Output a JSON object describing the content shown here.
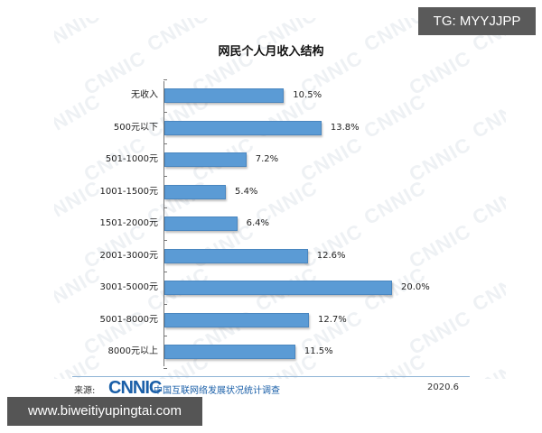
{
  "overlays": {
    "top_right_badge": "TG: MYYJJPP",
    "bottom_left_badge": "www.biweitiyupingtai.com"
  },
  "watermark": "CNNIC",
  "footer": {
    "source_label": "来源:",
    "logo": "CNNIC",
    "organization": "中国互联网络发展状况统计调查",
    "date": "2020.6"
  },
  "chart_data": {
    "type": "bar",
    "orientation": "horizontal",
    "title": "网民个人月收入结构",
    "xlabel": "",
    "ylabel": "",
    "unit": "%",
    "xlim": [
      0,
      20
    ],
    "grid": false,
    "legend": null,
    "color": "#5b9bd5",
    "categories": [
      "无收入",
      "500元以下",
      "501-1000元",
      "1001-1500元",
      "1501-2000元",
      "2001-3000元",
      "3001-5000元",
      "5001-8000元",
      "8000元以上"
    ],
    "values": [
      10.5,
      13.8,
      7.2,
      5.4,
      6.4,
      12.6,
      20.0,
      12.7,
      11.5
    ],
    "value_labels": [
      "10.5%",
      "13.8%",
      "7.2%",
      "5.4%",
      "6.4%",
      "12.6%",
      "20.0%",
      "12.7%",
      "11.5%"
    ],
    "source": "CNNIC 中国互联网络发展状况统计调查",
    "date": "2020.6"
  }
}
